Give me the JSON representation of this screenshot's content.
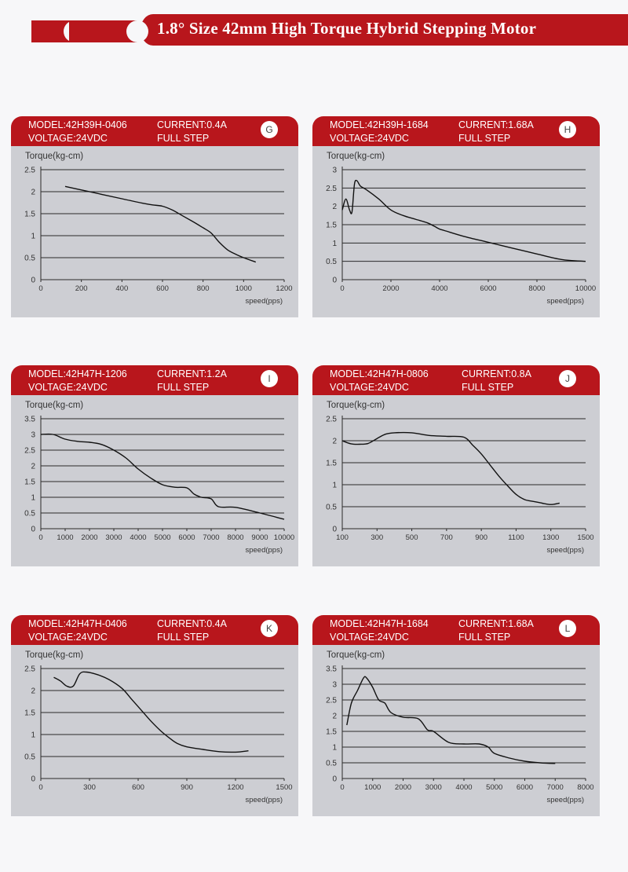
{
  "page": {
    "title": "1.8° Size 42mm High Torque Hybrid Stepping Motor",
    "theme_color": "#b8161c"
  },
  "charts": [
    {
      "badge": "G",
      "model": "MODEL:42H39H-0406",
      "current": "CURRENT:0.4A",
      "voltage": "VOLTAGE:24VDC",
      "mode": "FULL STEP",
      "chart_data": {
        "type": "line",
        "ylabel": "Torque(kg-cm)",
        "xlabel": "speed(pps)",
        "xlim": [
          0,
          1200
        ],
        "ylim": [
          0,
          2.5
        ],
        "xticks": [
          0,
          200,
          400,
          600,
          800,
          1000,
          1200
        ],
        "xtick_labels": [
          "0",
          "200",
          "400",
          "600",
          "800",
          "1000",
          "1200"
        ],
        "yticks": [
          0,
          0.5,
          1,
          1.5,
          2,
          2.5
        ],
        "ytick_labels": [
          "0",
          "0.5",
          "1",
          "1.5",
          "2",
          "2.5"
        ],
        "series": [
          {
            "x": [
              120,
              200,
              300,
              400,
              500,
              550,
              600,
              650,
              700,
              750,
              800,
              840,
              880,
              920,
              960,
              1000,
              1060
            ],
            "y": [
              2.12,
              2.04,
              1.94,
              1.84,
              1.74,
              1.7,
              1.67,
              1.58,
              1.45,
              1.32,
              1.18,
              1.06,
              0.85,
              0.68,
              0.58,
              0.5,
              0.4
            ]
          }
        ]
      }
    },
    {
      "badge": "H",
      "model": "MODEL:42H39H-1684",
      "current": "CURRENT:1.68A",
      "voltage": "VOLTAGE:24VDC",
      "mode": "FULL STEP",
      "chart_data": {
        "type": "line",
        "ylabel": "Torque(kg-cm)",
        "xlabel": "speed(pps)",
        "xlim": [
          0,
          10000
        ],
        "ylim": [
          0,
          3
        ],
        "xticks": [
          0,
          2000,
          4000,
          6000,
          8000,
          10000
        ],
        "xtick_labels": [
          "0",
          "2000",
          "4000",
          "6000",
          "8000",
          "10000"
        ],
        "yticks": [
          0,
          0.5,
          1,
          1.5,
          2,
          2.5,
          3
        ],
        "ytick_labels": [
          "0",
          "0.5",
          "1",
          "1.5",
          "2",
          "2.5",
          "3"
        ],
        "series": [
          {
            "x": [
              0,
              150,
              300,
              400,
              500,
              600,
              750,
              1000,
              1500,
              2000,
              2500,
              3000,
              3500,
              3800,
              4000,
              4200,
              5000,
              6000,
              7000,
              8000,
              9000,
              10000
            ],
            "y": [
              1.9,
              2.2,
              1.9,
              1.85,
              2.6,
              2.7,
              2.55,
              2.45,
              2.2,
              1.9,
              1.75,
              1.65,
              1.55,
              1.45,
              1.38,
              1.34,
              1.18,
              1.02,
              0.86,
              0.7,
              0.55,
              0.5
            ]
          }
        ]
      }
    },
    {
      "badge": "I",
      "model": "MODEL:42H47H-1206",
      "current": "CURRENT:1.2A",
      "voltage": "VOLTAGE:24VDC",
      "mode": "FULL STEP",
      "chart_data": {
        "type": "line",
        "ylabel": "Torque(kg-cm)",
        "xlabel": "speed(pps)",
        "xlim": [
          0,
          10000
        ],
        "ylim": [
          0,
          3.5
        ],
        "xticks": [
          0,
          1000,
          2000,
          3000,
          4000,
          5000,
          6000,
          7000,
          8000,
          9000,
          10000
        ],
        "xtick_labels": [
          "0",
          "1000",
          "2000",
          "3000",
          "4000",
          "5000",
          "6000",
          "7000",
          "8000",
          "9000",
          "10000"
        ],
        "yticks": [
          0,
          0.5,
          1,
          1.5,
          2,
          2.5,
          3,
          3.5
        ],
        "ytick_labels": [
          "0",
          "0.5",
          "1",
          "1.5",
          "2",
          "2.5",
          "3",
          "3.5"
        ],
        "series": [
          {
            "x": [
              0,
              500,
              1000,
              1500,
              2000,
              2500,
              3000,
              3500,
              4000,
              4500,
              5000,
              5500,
              6000,
              6300,
              6600,
              7000,
              7300,
              8000,
              9000,
              10000
            ],
            "y": [
              3.0,
              3.0,
              2.85,
              2.78,
              2.75,
              2.68,
              2.5,
              2.25,
              1.9,
              1.62,
              1.4,
              1.32,
              1.3,
              1.1,
              1.0,
              0.95,
              0.7,
              0.68,
              0.5,
              0.3
            ]
          }
        ]
      }
    },
    {
      "badge": "J",
      "model": "MODEL:42H47H-0806",
      "current": "CURRENT:0.8A",
      "voltage": "VOLTAGE:24VDC",
      "mode": "FULL STEP",
      "chart_data": {
        "type": "line",
        "ylabel": "Torque(kg-cm)",
        "xlabel": "speed(pps)",
        "xlim": [
          100,
          1500
        ],
        "ylim": [
          0,
          2.5
        ],
        "xticks": [
          100,
          300,
          500,
          700,
          900,
          1100,
          1300,
          1500
        ],
        "xtick_labels": [
          "100",
          "300",
          "500",
          "700",
          "900",
          "1100",
          "1300",
          "1500"
        ],
        "yticks": [
          0,
          0.5,
          1,
          1.5,
          2,
          2.5
        ],
        "ytick_labels": [
          "0",
          "0.5",
          "1",
          "1.5",
          "2",
          "2.5"
        ],
        "series": [
          {
            "x": [
              100,
              150,
              200,
              250,
              300,
              350,
              400,
              500,
              600,
              700,
              800,
              850,
              900,
              950,
              1000,
              1050,
              1100,
              1150,
              1200,
              1250,
              1300,
              1350
            ],
            "y": [
              2.0,
              1.93,
              1.92,
              1.94,
              2.05,
              2.15,
              2.18,
              2.18,
              2.12,
              2.1,
              2.08,
              1.9,
              1.7,
              1.45,
              1.2,
              0.98,
              0.78,
              0.66,
              0.62,
              0.58,
              0.55,
              0.58
            ]
          }
        ]
      }
    },
    {
      "badge": "K",
      "model": "MODEL:42H47H-0406",
      "current": "CURRENT:0.4A",
      "voltage": "VOLTAGE:24VDC",
      "mode": "FULL STEP",
      "chart_data": {
        "type": "line",
        "ylabel": "Torque(kg-cm)",
        "xlabel": "speed(pps)",
        "xlim": [
          0,
          1500
        ],
        "ylim": [
          0,
          2.5
        ],
        "xticks": [
          0,
          300,
          600,
          900,
          1200,
          1500
        ],
        "xtick_labels": [
          "0",
          "300",
          "600",
          "900",
          "1200",
          "1500"
        ],
        "yticks": [
          0,
          0.5,
          1,
          1.5,
          2,
          2.5
        ],
        "ytick_labels": [
          "0",
          "0.5",
          "1",
          "1.5",
          "2",
          "2.5"
        ],
        "series": [
          {
            "x": [
              80,
              120,
              160,
              200,
              240,
              280,
              350,
              420,
              500,
              560,
              620,
              680,
              740,
              800,
              840,
              900,
              1000,
              1100,
              1200,
              1280
            ],
            "y": [
              2.3,
              2.22,
              2.1,
              2.1,
              2.38,
              2.42,
              2.36,
              2.25,
              2.05,
              1.8,
              1.55,
              1.3,
              1.08,
              0.9,
              0.8,
              0.72,
              0.66,
              0.61,
              0.6,
              0.63
            ]
          }
        ]
      }
    },
    {
      "badge": "L",
      "model": "MODEL:42H47H-1684",
      "current": "CURRENT:1.68A",
      "voltage": "VOLTAGE:24VDC",
      "mode": "FULL STEP",
      "chart_data": {
        "type": "line",
        "ylabel": "Torque(kg-cm)",
        "xlabel": "speed(pps)",
        "xlim": [
          0,
          8000
        ],
        "ylim": [
          0,
          3.5
        ],
        "xticks": [
          0,
          1000,
          2000,
          3000,
          4000,
          5000,
          6000,
          7000,
          8000
        ],
        "xtick_labels": [
          "0",
          "1000",
          "2000",
          "3000",
          "4000",
          "5000",
          "6000",
          "7000",
          "8000"
        ],
        "yticks": [
          0,
          0.5,
          1,
          1.5,
          2,
          2.5,
          3,
          3.5
        ],
        "ytick_labels": [
          "0",
          "0.5",
          "1",
          "1.5",
          "2",
          "2.5",
          "3",
          "3.5"
        ],
        "series": [
          {
            "x": [
              150,
              300,
              500,
              700,
              800,
              1000,
              1200,
              1400,
              1600,
              2000,
              2500,
              2800,
              3000,
              3500,
              4000,
              4500,
              4800,
              5000,
              5500,
              6000,
              6500,
              7000
            ],
            "y": [
              1.7,
              2.4,
              2.8,
              3.2,
              3.2,
              2.9,
              2.5,
              2.4,
              2.1,
              1.95,
              1.9,
              1.55,
              1.5,
              1.15,
              1.1,
              1.1,
              1.0,
              0.8,
              0.65,
              0.55,
              0.5,
              0.48
            ]
          }
        ]
      }
    }
  ]
}
